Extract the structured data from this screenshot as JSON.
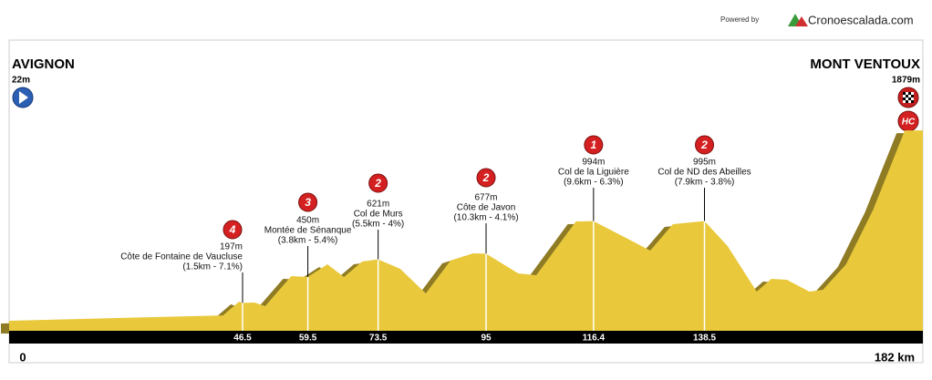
{
  "chart_data": {
    "type": "profile",
    "powered_by": "Powered by",
    "brand": "Cronoescalada.com",
    "start": {
      "name": "AVIGNON",
      "altitude": "22m",
      "km_label": "0"
    },
    "finish": {
      "name": "MONT VENTOUX",
      "altitude": "1879m",
      "km_label": "182 km",
      "category": "HC"
    },
    "xlim": [
      0,
      182
    ],
    "ylim": [
      0,
      2760
    ],
    "profile": {
      "km": [
        0,
        42.6,
        45.8,
        46.5,
        48.9,
        51,
        56.2,
        59.5,
        63.4,
        66.7,
        70.3,
        73.5,
        77.9,
        83,
        87.9,
        92.4,
        95,
        101.4,
        105,
        112.9,
        116.4,
        123.2,
        127.7,
        132.2,
        138.5,
        143.1,
        148.9,
        151.8,
        154.9,
        159.4,
        162.1,
        166.7,
        172.1,
        178.4,
        182
      ],
      "elevation": [
        22,
        75,
        209,
        197,
        200,
        165,
        458,
        450,
        573,
        449,
        600,
        621,
        529,
        289,
        609,
        680,
        677,
        484,
        467,
        991,
        994,
        822,
        707,
        964,
        995,
        751,
        307,
        431,
        422,
        307,
        324,
        573,
        1107,
        1879,
        1879
      ]
    },
    "climbs": [
      {
        "category": "4",
        "altitude": "197m",
        "name": "Côte de Fontaine de Vaucluse",
        "details": "(1.5km - 7.1%)",
        "km": 46.5
      },
      {
        "category": "3",
        "altitude": "450m",
        "name": "Montée de Sénanque",
        "details": "(3.8km - 5.4%)",
        "km": 59.5
      },
      {
        "category": "2",
        "altitude": "621m",
        "name": "Col de Murs",
        "details": "(5.5km - 4%)",
        "km": 73.5
      },
      {
        "category": "2",
        "altitude": "677m",
        "name": "Côte de Javon",
        "details": "(10.3km - 4.1%)",
        "km": 95
      },
      {
        "category": "1",
        "altitude": "994m",
        "name": "Col de la Liguière",
        "details": "(9.6km - 6.3%)",
        "km": 116.4
      },
      {
        "category": "2",
        "altitude": "995m",
        "name": "Col de ND des Abeilles",
        "details": "(7.9km - 3.8%)",
        "km": 138.5
      }
    ]
  }
}
